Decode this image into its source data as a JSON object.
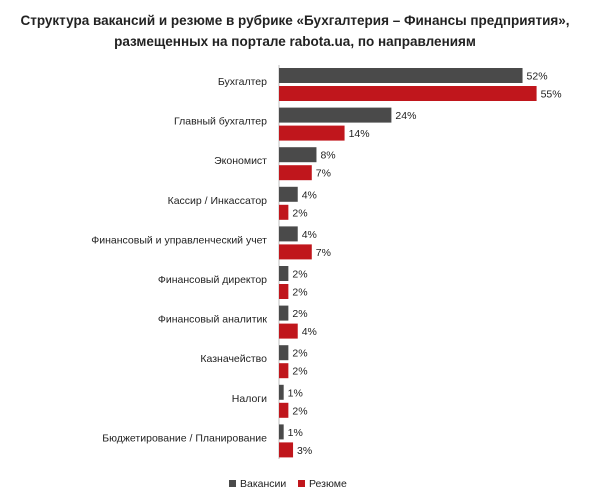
{
  "chart_data": {
    "type": "bar",
    "orientation": "horizontal",
    "title_lines": [
      "Структура вакансий и резюме в рубрике «Бухгалтерия – Финансы предприятия»,",
      "размещенных на портале rabota.ua, по направлениям"
    ],
    "categories": [
      "Бухгалтер",
      "Главный бухгалтер",
      "Экономист",
      "Кассир / Инкассатор",
      "Финансовый и управленческий учет",
      "Финансовый директор",
      "Финансовый аналитик",
      "Казначейство",
      "Налоги",
      "Бюджетирование / Планирование"
    ],
    "series": [
      {
        "name": "Вакансии",
        "color": "#4a4a4a",
        "values": [
          52,
          24,
          8,
          4,
          4,
          2,
          2,
          2,
          1,
          1
        ],
        "labels": [
          "52%",
          "24%",
          "8%",
          "4%",
          "4%",
          "2%",
          "2%",
          "2%",
          "1%",
          "1%"
        ]
      },
      {
        "name": "Резюме",
        "color": "#c0161c",
        "values": [
          55,
          14,
          7,
          2,
          7,
          2,
          4,
          2,
          2,
          3
        ],
        "labels": [
          "55%",
          "14%",
          "7%",
          "2%",
          "7%",
          "2%",
          "4%",
          "2%",
          "2%",
          "3%"
        ]
      }
    ],
    "xlim": [
      0,
      60
    ],
    "grid": false,
    "legend_position": "bottom-center"
  }
}
